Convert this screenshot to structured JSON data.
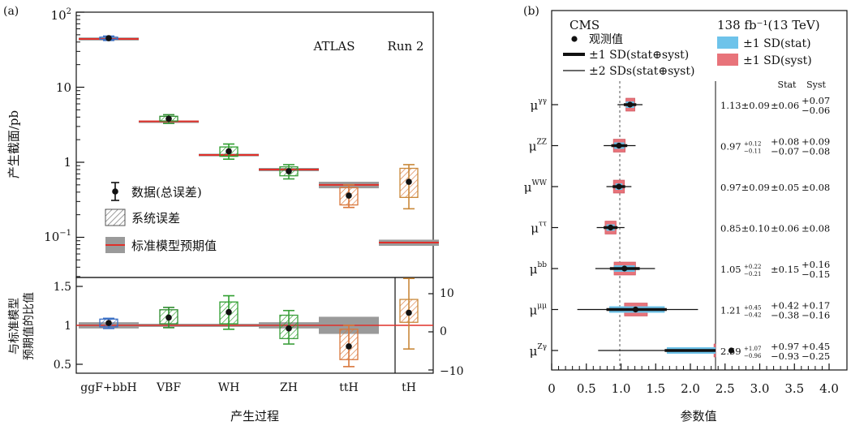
{
  "panel_a": {
    "panel_label": "(a)",
    "ylabel_top": "产生截面/pb",
    "ylabel_bottom_line1": "与标准模型",
    "ylabel_bottom_line2": "预期值的比值",
    "xlabel": "产生过程",
    "annotation_experiment": "ATLAS",
    "annotation_run": "Run 2",
    "legend": {
      "data": "数据(总误差)",
      "syst": "系统误差",
      "sm": "标准模型预期值"
    },
    "y_ticks_top": [
      {
        "value": 100,
        "label_base": "10",
        "label_exp": "2"
      },
      {
        "value": 10,
        "label": "10"
      },
      {
        "value": 1,
        "label": "1"
      },
      {
        "value": 0.1,
        "label_base": "10",
        "label_exp": "−1"
      }
    ],
    "y_ticks_bottom_left": [
      "1.5",
      "1",
      "0.5"
    ],
    "y_ticks_bottom_right": [
      "10",
      "0",
      "−10"
    ]
  },
  "panel_b": {
    "panel_label": "(b)",
    "experiment": "CMS",
    "lumi": "138 fb⁻¹(13 TeV)",
    "legend": {
      "observed": "观测值",
      "one_sd_total": "±1 SD(stat⊕syst)",
      "two_sd_total": "±2 SDs(stat⊕syst)",
      "stat": "±1 SD(stat)",
      "syst": "±1 SD(syst)"
    },
    "header_stat": "Stat",
    "header_syst": "Syst",
    "xlabel": "参数值",
    "x_tick_labels": [
      "0",
      "0.5",
      "1.0",
      "1.5",
      "2.0",
      "2.5",
      "3.0",
      "3.5",
      "4.0"
    ],
    "rows": [
      {
        "sup": "γγ",
        "text_center": "1.13±0.09",
        "stat": "±0.06",
        "syst_up": "+0.07",
        "syst_dn": "−0.06"
      },
      {
        "sup": "ZZ",
        "text_center": "0.97",
        "text_up": "+0.12",
        "text_dn": "−0.11",
        "stat_up": "+0.08",
        "stat_dn": "−0.07",
        "syst_up": "+0.09",
        "syst_dn": "−0.08"
      },
      {
        "sup": "WW",
        "text_center": "0.97±0.09",
        "stat": "±0.05",
        "syst": "±0.08"
      },
      {
        "sup": "ττ",
        "text_center": "0.85±0.10",
        "stat": "±0.06",
        "syst": "±0.08"
      },
      {
        "sup": "bb",
        "text_center": "1.05",
        "text_up": "+0.22",
        "text_dn": "−0.21",
        "stat": "±0.15",
        "syst_up": "+0.16",
        "syst_dn": "−0.15"
      },
      {
        "sup": "μμ",
        "text_center": "1.21",
        "text_up": "+0.45",
        "text_dn": "−0.42",
        "stat_up": "+0.42",
        "stat_dn": "−0.38",
        "syst_up": "+0.17",
        "syst_dn": "−0.16"
      },
      {
        "sup": "Zγ",
        "text_center": "2.59",
        "text_up": "+1.07",
        "text_dn": "−0.96",
        "stat_up": "+0.97",
        "stat_dn": "−0.93",
        "syst_up": "+0.45",
        "syst_dn": "−0.25"
      }
    ]
  },
  "colors": {
    "ggF": "#3a6fc4",
    "VBF": "#2e8b2e",
    "WH": "#2e9e2e",
    "ZH": "#3a9e3a",
    "ttH": "#d9763a",
    "tH": "#c9883a",
    "sm_line": "#e0302a",
    "sm_band": "#9a9a9a",
    "stat_fill": "#6ec3ea",
    "syst_fill": "#e8737a"
  },
  "chart_data": [
    {
      "type": "scatter",
      "title": "",
      "ylabel": "产生截面/pb",
      "xlabel": "产生过程",
      "yscale": "log",
      "ylim": [
        0.04,
        100
      ],
      "categories": [
        "ggF+bbH",
        "VBF",
        "WH",
        "ZH",
        "ttH",
        "tH"
      ],
      "measured": [
        45,
        3.8,
        1.4,
        0.76,
        0.36,
        0.55
      ],
      "total_err_low": [
        42,
        3.3,
        1.1,
        0.6,
        0.25,
        0.24
      ],
      "total_err_high": [
        48,
        4.3,
        1.75,
        0.93,
        0.5,
        0.93
      ],
      "syst_low": [
        43.5,
        3.55,
        1.2,
        0.66,
        0.27,
        0.34
      ],
      "syst_high": [
        46.5,
        4.1,
        1.6,
        0.87,
        0.46,
        0.83
      ],
      "sm_prediction": [
        44,
        3.5,
        1.25,
        0.8,
        0.5,
        0.085
      ],
      "sm_band_low": [
        42,
        3.4,
        1.2,
        0.76,
        0.45,
        0.077
      ],
      "sm_band_high": [
        46,
        3.6,
        1.3,
        0.84,
        0.55,
        0.093
      ]
    },
    {
      "type": "scatter",
      "ylabel": "与标准模型预期值的比值",
      "ylim": [
        0.4,
        1.6
      ],
      "categories": [
        "ggF+bbH",
        "VBF",
        "WH",
        "ZH",
        "ttH"
      ],
      "ratio": [
        1.03,
        1.1,
        1.17,
        0.96,
        0.73
      ],
      "total_err_low": [
        0.96,
        0.97,
        0.95,
        0.76,
        0.47
      ],
      "total_err_high": [
        1.09,
        1.23,
        1.38,
        1.19,
        1.0
      ],
      "syst_low": [
        0.98,
        1.02,
        1.02,
        0.83,
        0.56
      ],
      "syst_high": [
        1.08,
        1.2,
        1.3,
        1.13,
        0.95
      ],
      "sm_band_low": [
        0.96,
        0.98,
        0.98,
        0.96,
        0.89
      ],
      "sm_band_high": [
        1.04,
        1.02,
        1.02,
        1.04,
        1.11
      ],
      "tH_secondary_axis": {
        "ylim": [
          -12,
          12
        ],
        "ticks": [
          10,
          0,
          -10
        ],
        "value": 5.0,
        "total_err": [
          -4.5,
          14
        ],
        "syst_err": [
          2.5,
          8.5
        ]
      }
    },
    {
      "type": "scatter",
      "xlabel": "参数值",
      "xlim": [
        0,
        4.0
      ],
      "categories": [
        "μγγ",
        "μZZ",
        "μWW",
        "μττ",
        "μbb",
        "μμμ",
        "μZγ"
      ],
      "values": [
        1.13,
        0.97,
        0.97,
        0.85,
        1.05,
        1.21,
        2.59
      ],
      "one_sd_total": [
        [
          1.04,
          1.22
        ],
        [
          0.86,
          1.09
        ],
        [
          0.88,
          1.06
        ],
        [
          0.75,
          0.95
        ],
        [
          0.84,
          1.27
        ],
        [
          0.79,
          1.66
        ],
        [
          1.63,
          3.66
        ]
      ],
      "two_sd_total": [
        [
          0.95,
          1.31
        ],
        [
          0.75,
          1.21
        ],
        [
          0.79,
          1.15
        ],
        [
          0.65,
          1.05
        ],
        [
          0.63,
          1.49
        ],
        [
          0.37,
          2.11
        ],
        [
          0.67,
          4.73
        ]
      ],
      "stat": [
        [
          1.07,
          1.19
        ],
        [
          0.9,
          1.05
        ],
        [
          0.92,
          1.02
        ],
        [
          0.79,
          0.91
        ],
        [
          0.9,
          1.2
        ],
        [
          0.83,
          1.63
        ],
        [
          1.66,
          3.56
        ]
      ],
      "syst": [
        [
          1.07,
          1.2
        ],
        [
          0.89,
          1.06
        ],
        [
          0.89,
          1.05
        ],
        [
          0.77,
          0.93
        ],
        [
          0.9,
          1.21
        ],
        [
          1.05,
          1.38
        ],
        [
          2.34,
          3.04
        ]
      ],
      "sm_reference": 1.0
    }
  ]
}
